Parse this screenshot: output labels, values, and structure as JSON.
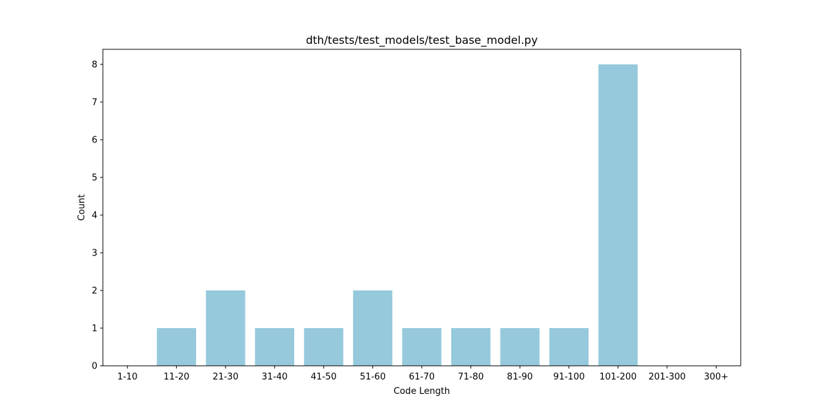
{
  "chart_data": {
    "type": "bar",
    "title": "dth/tests/test_models/test_base_model.py",
    "xlabel": "Code Length",
    "ylabel": "Count",
    "categories": [
      "1-10",
      "11-20",
      "21-30",
      "31-40",
      "41-50",
      "51-60",
      "61-70",
      "71-80",
      "81-90",
      "91-100",
      "101-200",
      "201-300",
      "300+"
    ],
    "values": [
      0,
      1,
      2,
      1,
      1,
      2,
      1,
      1,
      1,
      1,
      8,
      0,
      0
    ],
    "ylim": [
      0,
      8.4
    ],
    "yticks": [
      "0",
      "1",
      "2",
      "3",
      "4",
      "5",
      "6",
      "7",
      "8"
    ],
    "bar_color": "#96c9dc",
    "grid": false,
    "legend": false
  }
}
